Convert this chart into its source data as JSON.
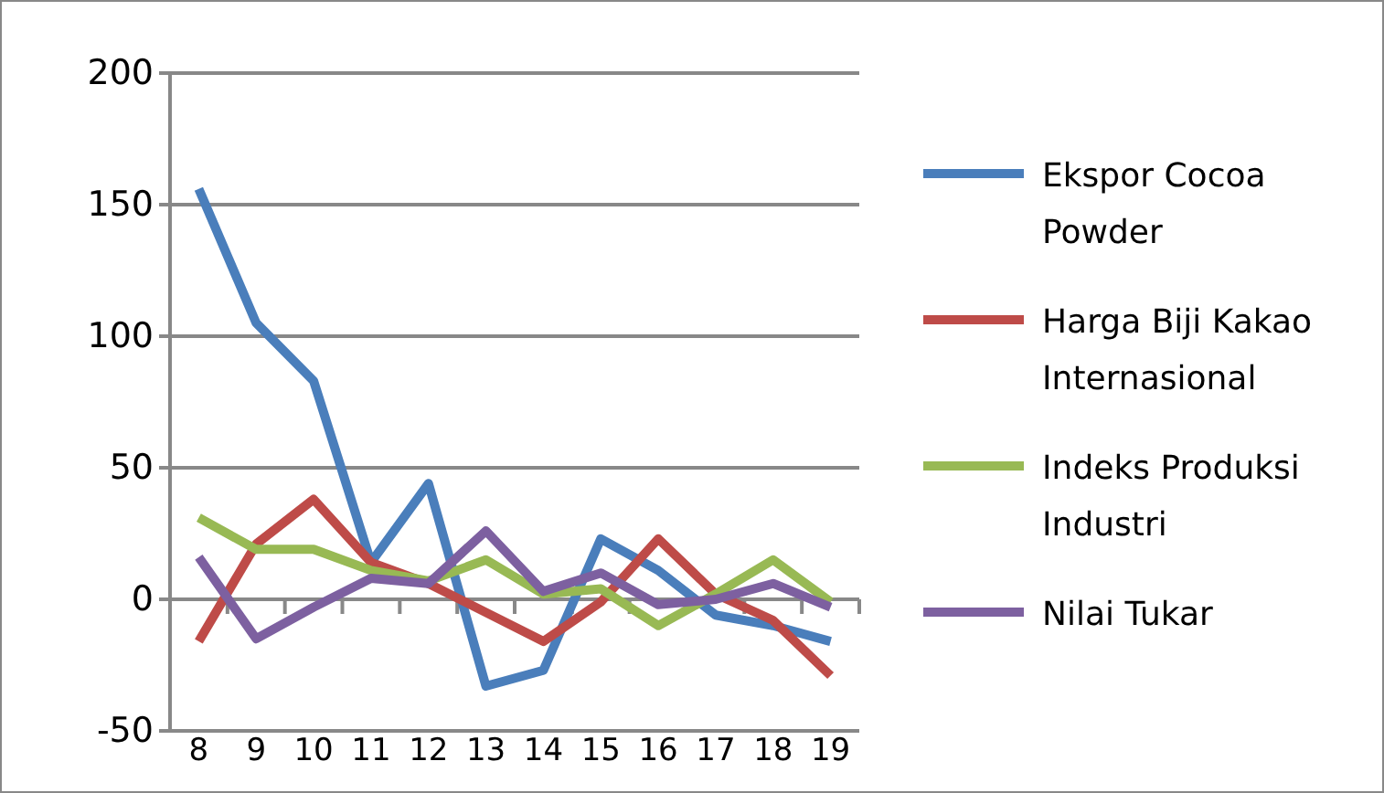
{
  "chart_data": {
    "type": "line",
    "categories": [
      "8",
      "9",
      "10",
      "11",
      "12",
      "13",
      "14",
      "15",
      "16",
      "17",
      "18",
      "19"
    ],
    "series": [
      {
        "name": "Ekspor Cocoa Powder",
        "color": "#4a7ebb",
        "values": [
          156,
          105,
          83,
          14,
          44,
          -33,
          -27,
          23,
          11,
          -6,
          -10,
          -16
        ]
      },
      {
        "name": "Harga Biji Kakao Internasional",
        "color": "#be4b48",
        "values": [
          -16,
          21,
          38,
          14,
          6,
          -5,
          -16,
          -1,
          23,
          2,
          -8,
          -29
        ]
      },
      {
        "name": "Indeks Produksi Industri",
        "color": "#98b954",
        "values": [
          31,
          19,
          19,
          11,
          7,
          15,
          2,
          4,
          -10,
          2,
          15,
          -1
        ]
      },
      {
        "name": "Nilai Tukar",
        "color": "#7d60a0",
        "values": [
          16,
          -15,
          -3,
          8,
          6,
          26,
          3,
          10,
          -2,
          0,
          6,
          -3
        ]
      }
    ],
    "ylim": [
      -50,
      200
    ],
    "yticks": [
      -50,
      0,
      50,
      100,
      150,
      200
    ],
    "grid": "y",
    "legend": "right",
    "marker": "none",
    "line_style": "solid"
  }
}
